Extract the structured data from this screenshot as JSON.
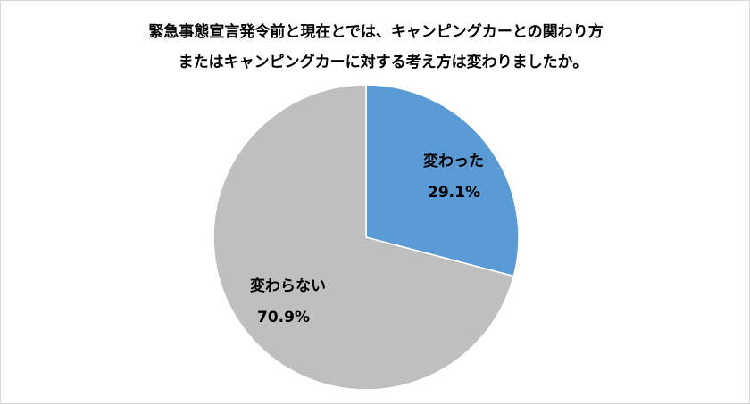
{
  "chart_data": {
    "type": "pie",
    "title_lines": [
      "緊急事態宣言発令前と現在とでは、キャンピングカーとの関わり方",
      "またはキャンピングカーに対する考え方は変わりましたか。"
    ],
    "slices": [
      {
        "label": "変わった",
        "value": 29.1,
        "display": "29.1%",
        "color": "#5b9bd5"
      },
      {
        "label": "変わらない",
        "value": 70.9,
        "display": "70.9%",
        "color": "#bfbfbf"
      }
    ],
    "start_angle": "12 o'clock",
    "direction": "clockwise",
    "legend": "none",
    "data_labels": "inside"
  }
}
